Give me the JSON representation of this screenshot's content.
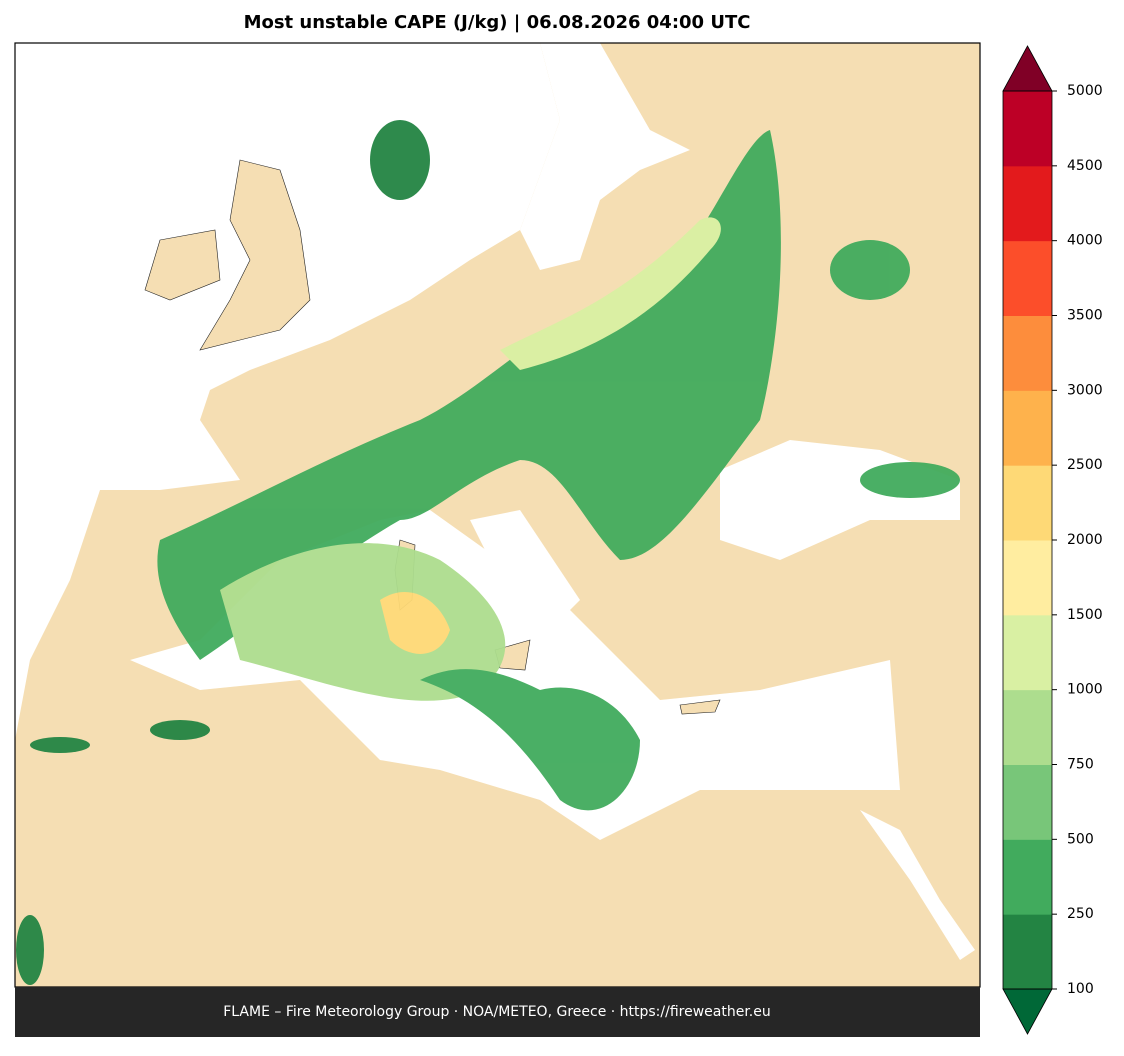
{
  "title": "Most unstable CAPE (J/kg)  |  06.08.2026 04:00 UTC",
  "footer": "FLAME – Fire Meteorology Group · NOA/METEO, Greece · https://fireweather.eu",
  "colorbar": {
    "levels": [
      100,
      250,
      500,
      750,
      1000,
      1500,
      2000,
      2500,
      3000,
      3500,
      4000,
      4500,
      5000
    ],
    "colors": [
      "#238443",
      "#41ab5d",
      "#78c679",
      "#addd8e",
      "#d9f0a3",
      "#ffeda0",
      "#fed976",
      "#feb24c",
      "#fd8d3c",
      "#fc4e2a",
      "#e31a1c",
      "#bd0026"
    ],
    "under_color": "#006837",
    "over_color": "#800026"
  }
}
